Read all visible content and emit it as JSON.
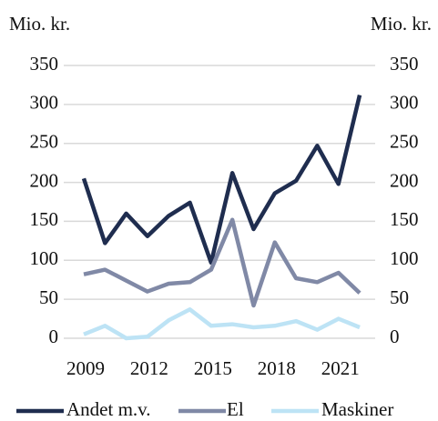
{
  "chart_data": {
    "type": "line",
    "ylabel": "Mio. kr.",
    "y2label": "Mio. kr.",
    "categories": [
      "2009",
      null,
      null,
      "2012",
      null,
      null,
      "2015",
      null,
      null,
      "2018",
      null,
      null,
      "2021",
      null
    ],
    "series": [
      {
        "name": "Andet m.v.",
        "color": "#1f2d4f",
        "values": [
          205,
          122,
          160,
          131,
          157,
          174,
          97,
          212,
          140,
          186,
          202,
          247,
          198,
          312
        ]
      },
      {
        "name": "El",
        "color": "#8089a6",
        "values": [
          82,
          88,
          74,
          60,
          70,
          72,
          88,
          152,
          42,
          123,
          77,
          72,
          84,
          58
        ]
      },
      {
        "name": "Maskiner",
        "color": "#bde3f5",
        "values": [
          5,
          16,
          0,
          2,
          23,
          37,
          16,
          18,
          14,
          16,
          22,
          11,
          25,
          14
        ]
      }
    ],
    "ylim": [
      0,
      350
    ],
    "yticks": [
      0,
      50,
      100,
      150,
      200,
      250,
      300,
      350
    ],
    "y2lim": [
      0,
      350
    ],
    "y2ticks": [
      0,
      50,
      100,
      150,
      200,
      250,
      300,
      350
    ],
    "grid": true,
    "legend": "bottom"
  }
}
